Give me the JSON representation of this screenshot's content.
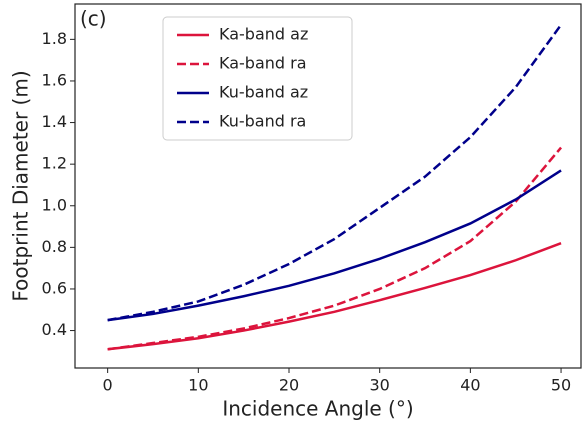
{
  "chart_data": {
    "type": "line",
    "annotation": "(c)",
    "xlabel": "Incidence Angle (°)",
    "ylabel": "Footprint Diameter (m)",
    "x": [
      0,
      5,
      10,
      15,
      20,
      25,
      30,
      35,
      40,
      45,
      50
    ],
    "series": [
      {
        "name": "Ka-band az",
        "color": "#dc143c",
        "linestyle": "solid",
        "values": [
          0.31,
          0.335,
          0.363,
          0.4,
          0.443,
          0.49,
          0.546,
          0.605,
          0.667,
          0.738,
          0.82
        ]
      },
      {
        "name": "Ka-band ra",
        "color": "#dc143c",
        "linestyle": "dashed",
        "values": [
          0.31,
          0.34,
          0.37,
          0.41,
          0.46,
          0.52,
          0.6,
          0.7,
          0.83,
          1.02,
          1.28
        ]
      },
      {
        "name": "Ku-band az",
        "color": "#00008b",
        "linestyle": "solid",
        "values": [
          0.45,
          0.48,
          0.52,
          0.565,
          0.615,
          0.675,
          0.745,
          0.825,
          0.915,
          1.03,
          1.17
        ]
      },
      {
        "name": "Ku-band ra",
        "color": "#00008b",
        "linestyle": "dashed",
        "values": [
          0.45,
          0.49,
          0.54,
          0.62,
          0.72,
          0.84,
          0.99,
          1.14,
          1.33,
          1.57,
          1.87
        ]
      }
    ],
    "xlim": [
      -3.6,
      52.2
    ],
    "ylim": [
      0.22,
      1.97
    ],
    "xticks": [
      0,
      10,
      20,
      30,
      40,
      50
    ],
    "yticks": [
      0.4,
      0.6,
      0.8,
      {
        "value": 1,
        "label": "1.0"
      },
      1.2,
      1.4,
      1.6,
      1.8
    ],
    "legend": "upper-left"
  }
}
